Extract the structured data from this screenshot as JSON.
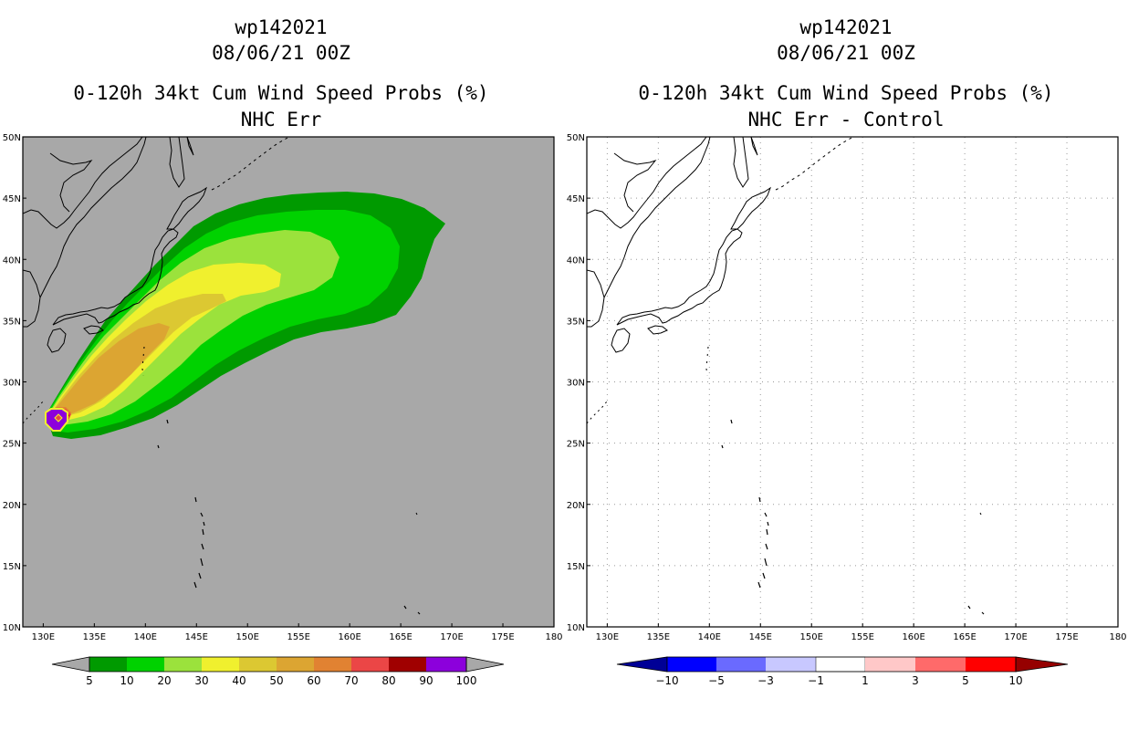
{
  "panels": [
    {
      "storm_id": "wp142021",
      "datetime": "08/06/21 00Z",
      "product": "0-120h 34kt Cum Wind Speed Probs (%)",
      "subtitle": "NHC Err",
      "colorbar": {
        "labels": [
          "5",
          "10",
          "20",
          "30",
          "40",
          "50",
          "60",
          "70",
          "80",
          "90",
          "100"
        ]
      }
    },
    {
      "storm_id": "wp142021",
      "datetime": "08/06/21 00Z",
      "product": "0-120h 34kt Cum Wind Speed Probs (%)",
      "subtitle": "NHC Err - Control",
      "colorbar": {
        "labels": [
          "-10",
          "-5",
          "-3",
          "-1",
          "1",
          "3",
          "5",
          "10"
        ]
      }
    }
  ],
  "chart_data": [
    {
      "type": "heatmap",
      "title": "wp142021 08/06/21 00Z 0-120h 34kt Cum Wind Speed Probs (%) NHC Err",
      "xlim": [
        128,
        180
      ],
      "ylim": [
        10,
        50
      ],
      "x_ticks": [
        130,
        135,
        140,
        145,
        150,
        155,
        160,
        165,
        170,
        175,
        180
      ],
      "x_tick_labels": [
        "130E",
        "135E",
        "140E",
        "145E",
        "150E",
        "155E",
        "160E",
        "165E",
        "170E",
        "175E",
        "180"
      ],
      "y_ticks": [
        10,
        15,
        20,
        25,
        30,
        35,
        40,
        45,
        50
      ],
      "y_tick_labels": [
        "10N",
        "15N",
        "20N",
        "25N",
        "30N",
        "35N",
        "40N",
        "45N",
        "50N"
      ],
      "levels": [
        5,
        10,
        20,
        30,
        40,
        50,
        60,
        70,
        80,
        90,
        100
      ],
      "colors": [
        "#009a00",
        "#00d200",
        "#9be23c",
        "#f0f02e",
        "#dcc832",
        "#dca532",
        "#e18232",
        "#eb4646",
        "#a00000",
        "#8c00dc"
      ],
      "background": "#a8a8a8",
      "storm_center": [
        131.6,
        27.1
      ],
      "max_probability": 100
    },
    {
      "type": "heatmap",
      "title": "wp142021 08/06/21 00Z 0-120h 34kt Cum Wind Speed Probs (%) NHC Err - Control",
      "xlim": [
        128,
        180
      ],
      "ylim": [
        10,
        50
      ],
      "levels": [
        -10,
        -5,
        -3,
        -1,
        1,
        3,
        5,
        10
      ],
      "colors": [
        "#000096",
        "#0000ff",
        "#6a6aff",
        "#c8c8ff",
        "#ffffff",
        "#ffc8c8",
        "#ff6a6a",
        "#ff0000",
        "#960000"
      ],
      "field_values": "all between -1 and 1 (no difference)",
      "grid": true
    }
  ]
}
